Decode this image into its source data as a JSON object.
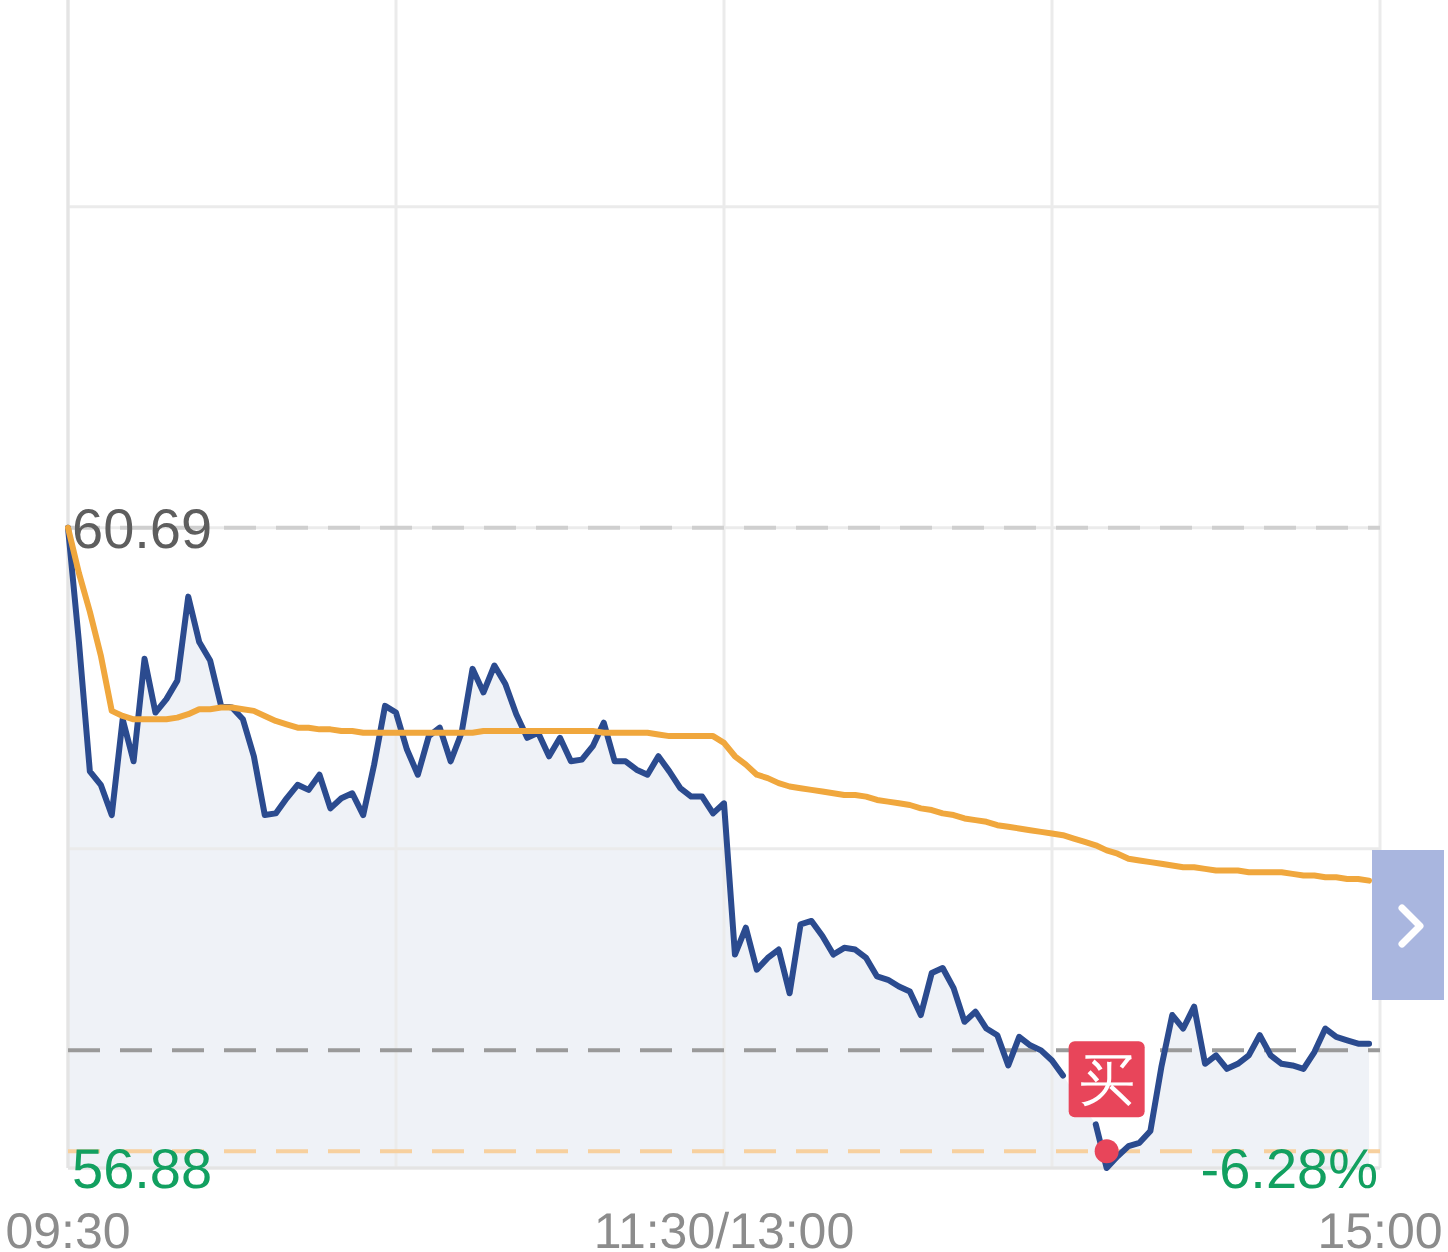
{
  "chart_data": {
    "type": "line",
    "categories": [
      "09:30",
      null,
      null,
      null,
      null,
      null,
      null,
      null,
      null,
      null,
      null,
      null,
      null,
      null,
      null,
      null,
      null,
      null,
      null,
      null,
      null,
      null,
      null,
      null,
      null,
      null,
      null,
      null,
      null,
      null,
      null,
      null,
      null,
      null,
      null,
      null,
      null,
      null,
      null,
      null,
      null,
      null,
      null,
      null,
      null,
      null,
      null,
      null,
      null,
      null,
      null,
      null,
      null,
      null,
      null,
      null,
      null,
      null,
      null,
      null,
      "11:30/13:00",
      null,
      null,
      null,
      null,
      null,
      null,
      null,
      null,
      null,
      null,
      null,
      null,
      null,
      null,
      null,
      null,
      null,
      null,
      null,
      null,
      null,
      null,
      null,
      null,
      null,
      null,
      null,
      null,
      null,
      null,
      null,
      null,
      null,
      null,
      null,
      null,
      null,
      null,
      null,
      null,
      null,
      null,
      null,
      null,
      null,
      null,
      null,
      null,
      null,
      null,
      null,
      null,
      null,
      null,
      null,
      null,
      null,
      null,
      null,
      "15:00"
    ],
    "ylim": [
      56.88,
      63.83
    ],
    "yticks": [
      {
        "value": 62.6,
        "label": null
      },
      {
        "value": 60.69,
        "label": "60.69"
      },
      {
        "value": 58.78,
        "label": null
      },
      {
        "value": 56.88,
        "label": "56.88"
      }
    ],
    "grid": true,
    "series": [
      {
        "type": "area",
        "color": "#2b4b8f",
        "values": [
          60.69,
          60.01,
          59.24,
          59.16,
          58.98,
          59.55,
          59.3,
          59.91,
          59.59,
          59.67,
          59.78,
          60.28,
          60.01,
          59.9,
          59.63,
          59.62,
          59.55,
          59.33,
          58.98,
          58.99,
          59.08,
          59.16,
          59.13,
          59.22,
          59.02,
          59.08,
          59.11,
          58.98,
          59.28,
          59.63,
          59.59,
          59.37,
          59.22,
          59.45,
          59.5,
          59.3,
          59.47,
          59.85,
          59.71,
          59.87,
          59.76,
          59.58,
          59.44,
          59.47,
          59.33,
          59.44,
          59.3,
          59.31,
          59.39,
          59.53,
          59.3,
          59.3,
          59.25,
          59.22,
          59.33,
          59.24,
          59.14,
          59.09,
          59.09,
          58.99,
          59.05,
          58.15,
          58.31,
          58.06,
          58.13,
          58.18,
          57.92,
          58.33,
          58.35,
          58.26,
          58.15,
          58.19,
          58.18,
          58.13,
          58.02,
          58.0,
          57.96,
          57.93,
          57.79,
          58.04,
          58.07,
          57.95,
          57.75,
          57.81,
          57.71,
          57.67,
          57.49,
          57.66,
          57.61,
          57.58,
          57.52,
          57.43,
          null,
          null,
          57.14,
          56.88,
          56.95,
          57.01,
          57.03,
          57.1,
          57.48,
          57.79,
          57.71,
          57.84,
          57.5,
          57.55,
          57.47,
          57.5,
          57.55,
          57.67,
          57.55,
          57.5,
          57.49,
          57.47,
          57.57,
          57.71,
          57.66,
          57.64,
          57.62,
          57.62,
          null
        ]
      },
      {
        "type": "line",
        "color": "#f0a73d",
        "values": [
          60.69,
          60.42,
          60.19,
          59.93,
          59.6,
          59.57,
          59.55,
          59.55,
          59.55,
          59.55,
          59.56,
          59.58,
          59.61,
          59.61,
          59.62,
          59.62,
          59.61,
          59.6,
          59.57,
          59.54,
          59.52,
          59.5,
          59.5,
          59.49,
          59.49,
          59.48,
          59.48,
          59.47,
          59.47,
          59.47,
          59.47,
          59.47,
          59.47,
          59.47,
          59.47,
          59.47,
          59.47,
          59.47,
          59.48,
          59.48,
          59.48,
          59.48,
          59.48,
          59.48,
          59.48,
          59.48,
          59.48,
          59.48,
          59.48,
          59.47,
          59.47,
          59.47,
          59.47,
          59.47,
          59.46,
          59.45,
          59.45,
          59.45,
          59.45,
          59.45,
          59.41,
          59.33,
          59.28,
          59.22,
          59.2,
          59.17,
          59.15,
          59.14,
          59.13,
          59.12,
          59.11,
          59.1,
          59.1,
          59.09,
          59.07,
          59.06,
          59.05,
          59.04,
          59.02,
          59.01,
          58.99,
          58.98,
          58.96,
          58.95,
          58.94,
          58.92,
          58.91,
          58.9,
          58.89,
          58.88,
          58.87,
          58.86,
          58.84,
          58.82,
          58.8,
          58.77,
          58.75,
          58.72,
          58.71,
          58.7,
          58.69,
          58.68,
          58.67,
          58.67,
          58.66,
          58.65,
          58.65,
          58.65,
          58.64,
          58.64,
          58.64,
          58.64,
          58.63,
          58.62,
          58.62,
          58.61,
          58.61,
          58.6,
          58.6,
          58.59,
          null
        ]
      },
      {
        "type": "scatter",
        "color": "#e8455a",
        "marker": "circle",
        "values": [
          null,
          null,
          null,
          null,
          null,
          null,
          null,
          null,
          null,
          null,
          null,
          null,
          null,
          null,
          null,
          null,
          null,
          null,
          null,
          null,
          null,
          null,
          null,
          null,
          null,
          null,
          null,
          null,
          null,
          null,
          null,
          null,
          null,
          null,
          null,
          null,
          null,
          null,
          null,
          null,
          null,
          null,
          null,
          null,
          null,
          null,
          null,
          null,
          null,
          null,
          null,
          null,
          null,
          null,
          null,
          null,
          null,
          null,
          null,
          null,
          null,
          null,
          null,
          null,
          null,
          null,
          null,
          null,
          null,
          null,
          null,
          null,
          null,
          null,
          null,
          null,
          null,
          null,
          null,
          null,
          null,
          null,
          null,
          null,
          null,
          null,
          null,
          null,
          null,
          null,
          null,
          null,
          null,
          null,
          null,
          56.98,
          null,
          null,
          null,
          null,
          null,
          null,
          null,
          null,
          null,
          null,
          null,
          null,
          null,
          null,
          null,
          null,
          null,
          null,
          null,
          null,
          null,
          null,
          null,
          null,
          null
        ]
      }
    ],
    "ref_lines": [
      {
        "axis": "y",
        "value": 60.69,
        "color": "#cfcfcf",
        "line_style": "dashed"
      },
      {
        "axis": "y",
        "value": 57.58,
        "color": "#9a9a9a",
        "line_style": "dashed"
      },
      {
        "axis": "y",
        "value": 56.98,
        "color": "#f7d09e",
        "line_style": "dashed"
      }
    ],
    "annotations": [
      {
        "text": "买",
        "y": 56.98
      },
      "-6.28%"
    ]
  }
}
